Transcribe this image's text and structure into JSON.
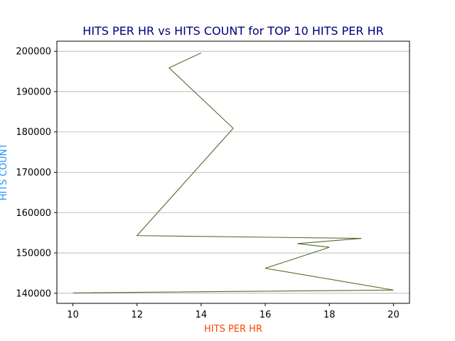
{
  "chart_data": {
    "type": "line",
    "title": "HITS PER HR vs HITS COUNT for TOP 10 HITS PER HR",
    "xlabel": "HITS PER HR",
    "ylabel": "HITS COUNT",
    "xlim": [
      9.5,
      20.5
    ],
    "ylim": [
      137500,
      202500
    ],
    "xticks": [
      10,
      12,
      14,
      16,
      18,
      20
    ],
    "yticks": [
      140000,
      150000,
      160000,
      170000,
      180000,
      190000,
      200000
    ],
    "grid": "horizontal",
    "series": [
      {
        "x": [
          14,
          13,
          15,
          12,
          19,
          17,
          18,
          16,
          20,
          10
        ],
        "y": [
          199600,
          195900,
          180900,
          154300,
          153600,
          152300,
          151400,
          146200,
          140800,
          140100
        ]
      }
    ]
  },
  "colors": {
    "title": "#00007f",
    "xlabel": "#ff4500",
    "ylabel": "#1e90ff",
    "line": "#556b2f",
    "grid": "#b0b0b0",
    "axes": "#000000"
  }
}
